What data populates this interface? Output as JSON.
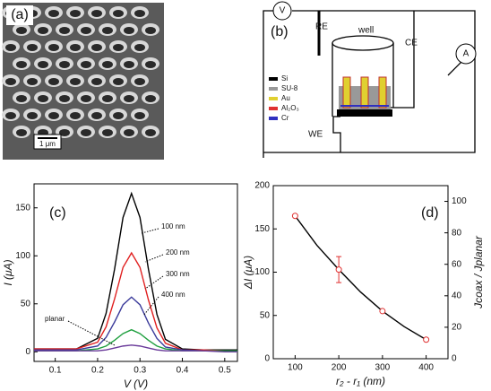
{
  "panel_a": {
    "label": "(a)",
    "scale": "1 μm"
  },
  "panel_b": {
    "label": "(b)",
    "voltmeter": "V",
    "ammeter": "A",
    "re": "RE",
    "well": "well",
    "ce": "CE",
    "we": "WE",
    "legend": [
      {
        "name": "Si",
        "color": "#000000"
      },
      {
        "name": "SU-8",
        "color": "#999999"
      },
      {
        "name": "Au",
        "color": "#e0d030"
      },
      {
        "name": "Al₂O₃",
        "color": "#e03030"
      },
      {
        "name": "Cr",
        "color": "#3030c0"
      }
    ]
  },
  "chart_data": [
    {
      "type": "line",
      "label": "(c)",
      "xlabel": "V (V)",
      "ylabel": "I (μA)",
      "x": [
        0.05,
        0.1,
        0.15,
        0.2,
        0.22,
        0.24,
        0.26,
        0.28,
        0.3,
        0.32,
        0.34,
        0.36,
        0.4,
        0.45,
        0.5,
        0.53
      ],
      "xlim": [
        0.05,
        0.53
      ],
      "xticks": [
        0.1,
        0.2,
        0.3,
        0.4,
        0.5
      ],
      "ylim": [
        -10,
        175
      ],
      "yticks": [
        0,
        50,
        100,
        150
      ],
      "series": [
        {
          "name": "100 nm",
          "color": "#000000",
          "values": [
            3,
            3,
            3,
            14,
            40,
            86,
            140,
            165,
            140,
            86,
            39,
            13,
            3,
            2,
            2,
            2
          ]
        },
        {
          "name": "200 nm",
          "color": "#e02020",
          "values": [
            3,
            3,
            3,
            10,
            26,
            55,
            88,
            103,
            88,
            54,
            25,
            9,
            2,
            2,
            1,
            1
          ]
        },
        {
          "name": "300 nm",
          "color": "#3a3a9a",
          "values": [
            2,
            2,
            2,
            6,
            15,
            31,
            49,
            57,
            49,
            30,
            14,
            5,
            2,
            1,
            1,
            1
          ]
        },
        {
          "name": "400 nm",
          "color": "#20a040",
          "values": [
            1,
            1,
            1,
            3,
            6,
            12,
            19,
            23,
            19,
            12,
            6,
            3,
            1,
            1,
            1,
            1
          ]
        },
        {
          "name": "planar",
          "color": "#6a3a9a",
          "values": [
            1,
            1,
            1,
            1,
            2,
            4,
            6,
            7,
            6,
            4,
            2,
            1,
            1,
            1,
            0,
            0
          ]
        }
      ]
    },
    {
      "type": "scatter",
      "label": "(d)",
      "xlabel": "r₂ - r₁ (nm)",
      "ylabel": "ΔI (μA)",
      "y2label": "Jcoax / Jplanar",
      "x": [
        100,
        200,
        300,
        400
      ],
      "values": [
        165,
        103,
        55,
        22
      ],
      "errors": [
        null,
        15,
        null,
        null
      ],
      "color": "#e03030",
      "fit": {
        "x": [
          100,
          150,
          200,
          250,
          300,
          350,
          400
        ],
        "values": [
          165,
          131,
          103,
          77,
          55,
          37,
          22
        ],
        "color": "#000000"
      },
      "xlim": [
        50,
        450
      ],
      "xticks": [
        100,
        200,
        300,
        400
      ],
      "ylim": [
        0,
        200
      ],
      "yticks": [
        0,
        50,
        100,
        150,
        200
      ],
      "y2lim": [
        0,
        110
      ],
      "y2ticks": [
        0,
        20,
        40,
        60,
        80,
        100
      ]
    }
  ]
}
